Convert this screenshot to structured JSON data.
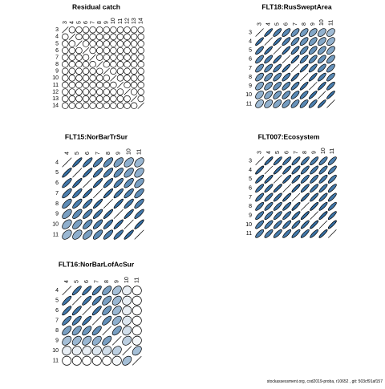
{
  "chart_data": [
    {
      "type": "corrplot",
      "title": "Residual catch",
      "labels": [
        "3",
        "4",
        "5",
        "6",
        "7",
        "8",
        "9",
        "10",
        "11",
        "12",
        "13",
        "14"
      ],
      "matrix": [
        [
          1,
          0,
          0,
          0,
          0,
          0,
          0,
          0,
          0,
          0,
          0,
          0
        ],
        [
          0,
          1,
          0,
          0,
          0,
          0,
          0,
          0,
          0,
          0,
          0,
          0
        ],
        [
          0,
          0,
          1,
          0,
          0,
          0,
          0,
          0,
          0,
          0,
          0,
          0
        ],
        [
          0,
          0,
          0,
          1,
          0,
          0,
          0,
          0,
          0,
          0,
          0,
          0
        ],
        [
          0,
          0,
          0,
          0,
          1,
          0,
          0,
          0,
          0,
          0,
          0,
          0
        ],
        [
          0,
          0,
          0,
          0,
          0,
          1,
          0,
          0,
          0,
          0,
          0,
          0
        ],
        [
          0,
          0,
          0,
          0,
          0,
          0,
          1,
          0,
          0,
          0,
          0,
          0
        ],
        [
          0,
          0,
          0,
          0,
          0,
          0,
          0,
          1,
          0,
          0,
          0,
          0
        ],
        [
          0,
          0,
          0,
          0,
          0,
          0,
          0,
          0,
          1,
          0,
          0,
          0
        ],
        [
          0,
          0,
          0,
          0,
          0,
          0,
          0,
          0,
          0,
          1,
          0,
          0
        ],
        [
          0,
          0,
          0,
          0,
          0,
          0,
          0,
          0,
          0,
          0,
          1,
          0
        ],
        [
          0,
          0,
          0,
          0,
          0,
          0,
          0,
          0,
          0,
          0,
          0,
          1
        ]
      ]
    },
    {
      "type": "corrplot",
      "title": "FLT18:RusSweptArea",
      "labels": [
        "3",
        "4",
        "5",
        "6",
        "7",
        "8",
        "9",
        "10",
        "11"
      ],
      "matrix": [
        [
          1,
          0.88,
          0.8,
          0.74,
          0.68,
          0.62,
          0.55,
          0.48,
          0.42
        ],
        [
          0.88,
          1,
          0.88,
          0.8,
          0.74,
          0.68,
          0.62,
          0.55,
          0.48
        ],
        [
          0.8,
          0.88,
          1,
          0.88,
          0.8,
          0.74,
          0.68,
          0.62,
          0.55
        ],
        [
          0.74,
          0.8,
          0.88,
          1,
          0.88,
          0.8,
          0.74,
          0.68,
          0.62
        ],
        [
          0.68,
          0.74,
          0.8,
          0.88,
          1,
          0.88,
          0.8,
          0.74,
          0.68
        ],
        [
          0.62,
          0.68,
          0.74,
          0.8,
          0.88,
          1,
          0.88,
          0.8,
          0.74
        ],
        [
          0.55,
          0.62,
          0.68,
          0.74,
          0.8,
          0.88,
          1,
          0.88,
          0.8
        ],
        [
          0.48,
          0.55,
          0.62,
          0.68,
          0.74,
          0.8,
          0.88,
          1,
          0.88
        ],
        [
          0.42,
          0.48,
          0.55,
          0.62,
          0.68,
          0.74,
          0.8,
          0.88,
          1
        ]
      ]
    },
    {
      "type": "corrplot",
      "title": "FLT15:NorBarTrSur",
      "labels": [
        "4",
        "5",
        "6",
        "7",
        "8",
        "9",
        "10",
        "11"
      ],
      "matrix": [
        [
          1,
          0.9,
          0.85,
          0.8,
          0.72,
          0.6,
          0.5,
          0.45
        ],
        [
          0.9,
          1,
          0.9,
          0.85,
          0.8,
          0.72,
          0.6,
          0.5
        ],
        [
          0.85,
          0.9,
          1,
          0.9,
          0.85,
          0.8,
          0.72,
          0.6
        ],
        [
          0.8,
          0.85,
          0.9,
          1,
          0.9,
          0.85,
          0.8,
          0.72
        ],
        [
          0.72,
          0.8,
          0.85,
          0.9,
          1,
          0.9,
          0.85,
          0.8
        ],
        [
          0.6,
          0.72,
          0.8,
          0.85,
          0.9,
          1,
          0.9,
          0.85
        ],
        [
          0.5,
          0.6,
          0.72,
          0.8,
          0.85,
          0.9,
          1,
          0.9
        ],
        [
          0.45,
          0.5,
          0.6,
          0.72,
          0.8,
          0.85,
          0.9,
          1
        ]
      ]
    },
    {
      "type": "corrplot",
      "title": "FLT007:Ecosystem",
      "labels": [
        "3",
        "4",
        "5",
        "6",
        "7",
        "8",
        "9",
        "10",
        "11"
      ],
      "matrix": [
        [
          1,
          0.9,
          0.87,
          0.85,
          0.84,
          0.83,
          0.82,
          0.8,
          0.78
        ],
        [
          0.9,
          1,
          0.9,
          0.87,
          0.85,
          0.84,
          0.83,
          0.82,
          0.8
        ],
        [
          0.87,
          0.9,
          1,
          0.9,
          0.87,
          0.85,
          0.84,
          0.83,
          0.82
        ],
        [
          0.85,
          0.87,
          0.9,
          1,
          0.9,
          0.87,
          0.85,
          0.84,
          0.83
        ],
        [
          0.84,
          0.85,
          0.87,
          0.9,
          1,
          0.9,
          0.87,
          0.85,
          0.84
        ],
        [
          0.83,
          0.84,
          0.85,
          0.87,
          0.9,
          1,
          0.9,
          0.87,
          0.85
        ],
        [
          0.82,
          0.83,
          0.84,
          0.85,
          0.87,
          0.9,
          1,
          0.9,
          0.87
        ],
        [
          0.8,
          0.82,
          0.83,
          0.84,
          0.85,
          0.87,
          0.9,
          1,
          0.9
        ],
        [
          0.78,
          0.8,
          0.82,
          0.83,
          0.84,
          0.85,
          0.87,
          0.9,
          1
        ]
      ]
    },
    {
      "type": "corrplot",
      "title": "FLT16:NorBarLofAcSur",
      "labels": [
        "4",
        "5",
        "6",
        "7",
        "8",
        "9",
        "10",
        "11"
      ],
      "matrix": [
        [
          1,
          0.85,
          0.85,
          0.8,
          0.6,
          0.4,
          0.1,
          0
        ],
        [
          0.85,
          1,
          0.85,
          0.8,
          0.6,
          0.45,
          0.1,
          0
        ],
        [
          0.85,
          0.85,
          1,
          0.85,
          0.65,
          0.45,
          0.1,
          0
        ],
        [
          0.8,
          0.8,
          0.85,
          1,
          0.7,
          0.5,
          0.15,
          0
        ],
        [
          0.6,
          0.6,
          0.65,
          0.7,
          1,
          0.6,
          0.2,
          0
        ],
        [
          0.4,
          0.45,
          0.45,
          0.5,
          0.6,
          1,
          0.3,
          0.05
        ],
        [
          0.1,
          0.1,
          0.1,
          0.15,
          0.2,
          0.3,
          1,
          0.4
        ],
        [
          0,
          0,
          0,
          0,
          0,
          0.05,
          0.4,
          1
        ]
      ]
    }
  ],
  "footer": "stockassessment.org, cod2019-proba, r10652 , git: 503cf91af157"
}
